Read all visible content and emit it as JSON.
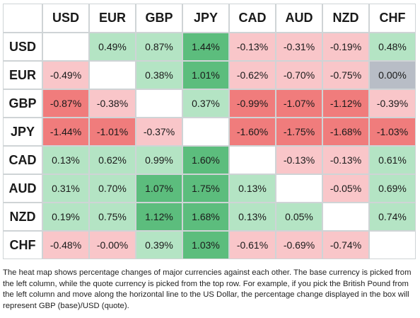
{
  "chart_data": {
    "type": "heatmap",
    "columns": [
      "USD",
      "EUR",
      "GBP",
      "JPY",
      "CAD",
      "AUD",
      "NZD",
      "CHF"
    ],
    "rows": [
      "USD",
      "EUR",
      "GBP",
      "JPY",
      "CAD",
      "AUD",
      "NZD",
      "CHF"
    ],
    "cells": [
      [
        "",
        "0.49%",
        "0.87%",
        "1.44%",
        "-0.13%",
        "-0.31%",
        "-0.19%",
        "0.48%"
      ],
      [
        "-0.49%",
        "",
        "0.38%",
        "1.01%",
        "-0.62%",
        "-0.70%",
        "-0.75%",
        "0.00%"
      ],
      [
        "-0.87%",
        "-0.38%",
        "",
        "0.37%",
        "-0.99%",
        "-1.07%",
        "-1.12%",
        "-0.39%"
      ],
      [
        "-1.44%",
        "-1.01%",
        "-0.37%",
        "",
        "-1.60%",
        "-1.75%",
        "-1.68%",
        "-1.03%"
      ],
      [
        "0.13%",
        "0.62%",
        "0.99%",
        "1.60%",
        "",
        "-0.13%",
        "-0.13%",
        "0.61%"
      ],
      [
        "0.31%",
        "0.70%",
        "1.07%",
        "1.75%",
        "0.13%",
        "",
        "-0.05%",
        "0.69%"
      ],
      [
        "0.19%",
        "0.75%",
        "1.12%",
        "1.68%",
        "0.13%",
        "0.05%",
        "",
        "0.74%"
      ],
      [
        "-0.48%",
        "-0.00%",
        "0.39%",
        "1.03%",
        "-0.61%",
        "-0.69%",
        "-0.74%",
        ""
      ]
    ],
    "colors": {
      "strong_positive": "#5cbd7d",
      "positive": "#b4e4c4",
      "strong_negative": "#f07c7c",
      "negative": "#f9c6c9",
      "neutral": "#b8bdc6",
      "empty": "#ffffff"
    }
  },
  "caption": "The heat map shows percentage changes of major currencies against each other. The base currency is picked from the left column, while the quote currency is picked from the top row. For example, if you pick the British Pound from the left column and move along the horizontal line to the US Dollar, the percentage change displayed in the box will represent GBP (base)/USD (quote)."
}
